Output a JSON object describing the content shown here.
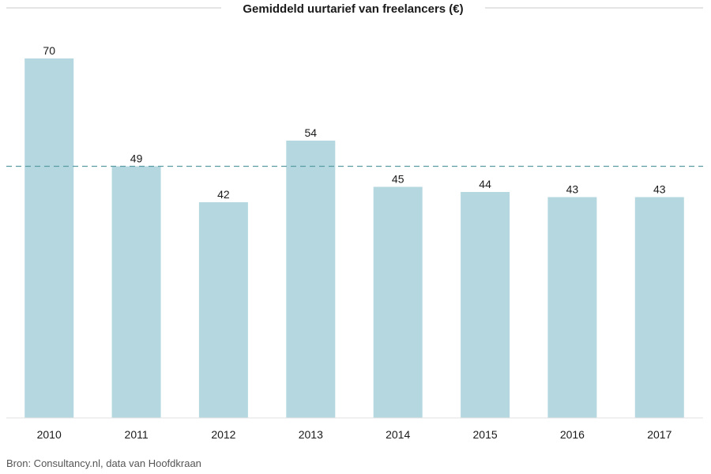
{
  "chart_data": {
    "type": "bar",
    "title": "Gemiddeld uurtarief van freelancers (€)",
    "categories": [
      "2010",
      "2011",
      "2012",
      "2013",
      "2014",
      "2015",
      "2016",
      "2017"
    ],
    "values": [
      70,
      49,
      42,
      54,
      45,
      44,
      43,
      43
    ],
    "reference_line": 49,
    "ylim": [
      0,
      72
    ],
    "xlabel": "",
    "ylabel": "",
    "grid": false
  },
  "source": "Bron: Consultancy.nl, data van Hoofdkraan",
  "colors": {
    "bar": "#b5d8e0",
    "reference_line": "#5a9ca3",
    "rule": "#c8c8c8",
    "baseline": "#e0e0e0"
  }
}
